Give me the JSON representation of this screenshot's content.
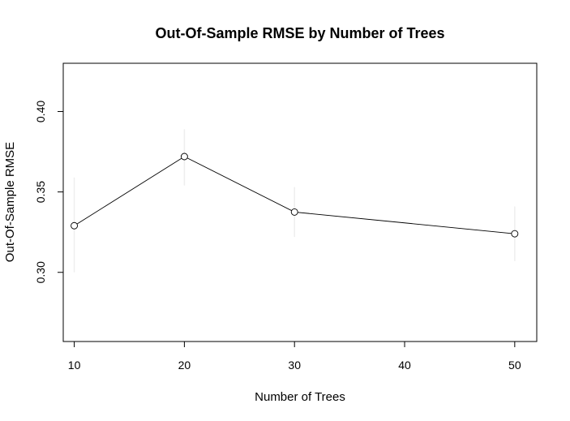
{
  "chart_data": {
    "type": "line",
    "title": "Out-Of-Sample RMSE by Number of Trees",
    "xlabel": "Number of Trees",
    "ylabel": "Out-Of-Sample RMSE",
    "x": [
      10,
      20,
      30,
      40,
      50
    ],
    "x_ticks": [
      10,
      20,
      30,
      40,
      50
    ],
    "x_tick_labels": [
      "10",
      "20",
      "30",
      "40",
      "50"
    ],
    "y_ticks": [
      0.3,
      0.35,
      0.4
    ],
    "y_tick_labels": [
      "0.30",
      "0.35",
      "0.40"
    ],
    "xlim": [
      9,
      52
    ],
    "ylim": [
      0.257,
      0.43
    ],
    "series": [
      {
        "x": [
          10,
          20,
          30,
          50
        ],
        "values": [
          0.329,
          0.372,
          0.3375,
          0.324
        ],
        "error_low": [
          0.3,
          0.354,
          0.322,
          0.307
        ],
        "error_high": [
          0.359,
          0.389,
          0.353,
          0.341
        ],
        "marker": "open-circle",
        "line_color": "#000000",
        "error_bar_color": "#eeeeee"
      }
    ],
    "grid": false,
    "legend": "none"
  }
}
